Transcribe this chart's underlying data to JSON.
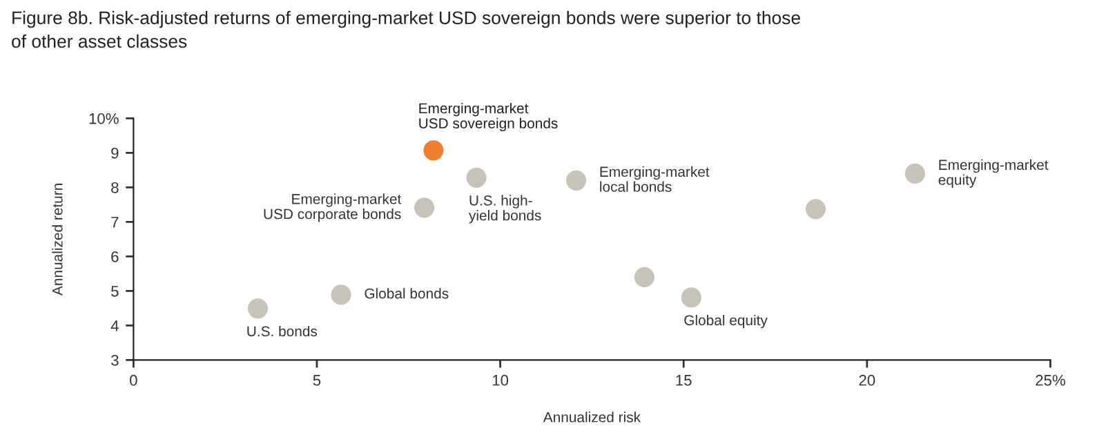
{
  "chart_data": {
    "type": "scatter",
    "title": "Figure 8b. Risk-adjusted returns of emerging-market USD sovereign bonds were superior to those\nof other asset classes",
    "xlabel": "Annualized risk",
    "ylabel": "Annualized return",
    "series": [
      {
        "x": [
          8.18,
          7.93,
          9.35,
          12.07,
          3.39,
          5.66,
          13.93,
          15.21,
          18.6,
          21.31
        ],
        "values": [
          9.07,
          7.41,
          8.28,
          8.2,
          4.49,
          4.89,
          5.4,
          4.81,
          7.37,
          8.4
        ],
        "colors": [
          "#f07f2b",
          "#c8c3b9",
          "#c8c3b9",
          "#c8c3b9",
          "#c8c3b9",
          "#c8c3b9",
          "#c8c3b9",
          "#c8c3b9",
          "#c8c3b9",
          "#c8c3b9"
        ]
      }
    ],
    "annotations": [
      {
        "text": "Emerging-market\nUSD sovereign bonds",
        "x": 8.18,
        "y": 9.07
      },
      {
        "text": "Emerging-market\nUSD corporate bonds",
        "x": 7.93,
        "y": 7.41
      },
      {
        "text": "U.S. high-\nyield bonds",
        "x": 9.35,
        "y": 8.28
      },
      {
        "text": "Emerging-market\nlocal bonds",
        "x": 12.07,
        "y": 8.2
      },
      {
        "text": "U.S. bonds",
        "x": 3.39,
        "y": 4.49
      },
      {
        "text": "Global bonds",
        "x": 5.66,
        "y": 4.89
      },
      {
        "text": "Global equity",
        "x": 15.21,
        "y": 4.81
      },
      {
        "text": "Emerging-market\nequity",
        "x": 21.31,
        "y": 8.4
      }
    ],
    "xlim": [
      0,
      25
    ],
    "xticks": [
      0,
      5,
      10,
      15,
      20,
      {
        "value": 25,
        "label": "25%"
      }
    ],
    "ylim": [
      3,
      10
    ],
    "yticks": [
      3,
      4,
      5,
      6,
      7,
      8,
      9,
      {
        "value": 10,
        "label": "10%"
      }
    ],
    "marker": "circle",
    "grid": false,
    "legend": false
  }
}
